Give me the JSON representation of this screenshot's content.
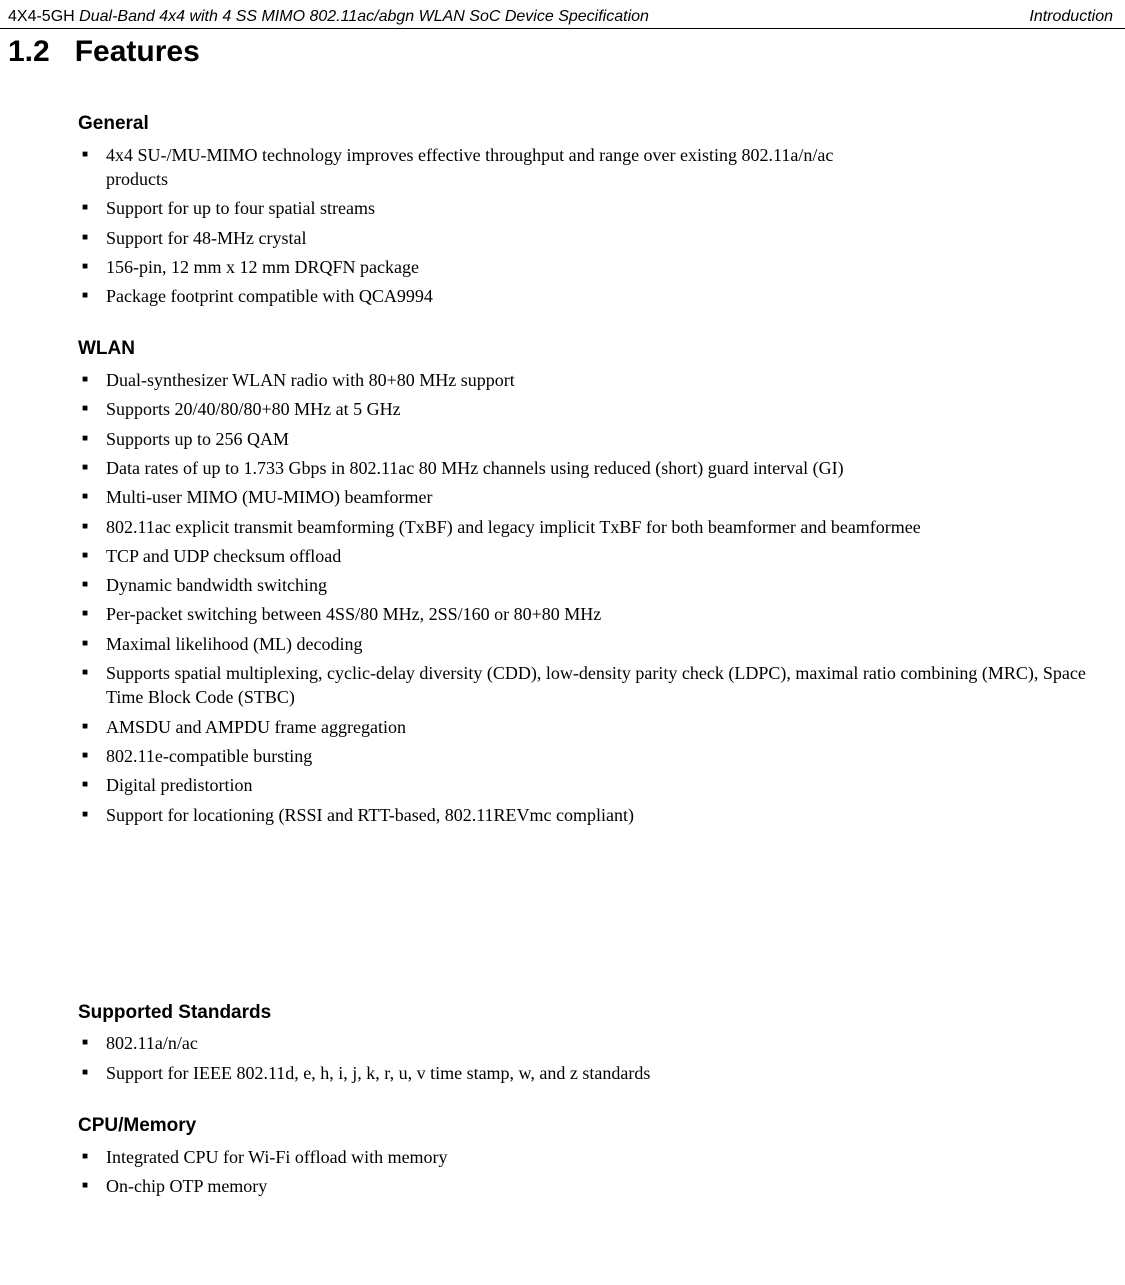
{
  "header": {
    "productCode": "4X4-5GH",
    "leftItalic": "Dual-Band 4x4 with 4 SS MIMO 802.11ac/abgn WLAN SoC Device Specification",
    "right": "Introduction"
  },
  "sectionNumber": "1.2",
  "sectionTitle": "Features",
  "groups": [
    {
      "heading": "General",
      "items": [
        {
          "text": "4x4 SU-/MU-MIMO technology improves effective throughput and range over existing 802.11a/n/ac",
          "cont": "products"
        },
        {
          "text": "Support for up to four spatial streams"
        },
        {
          "text": "Support for 48-MHz crystal"
        },
        {
          "text": "156-pin, 12 mm x 12 mm DRQFN package"
        },
        {
          "text": "Package footprint compatible with QCA9994"
        }
      ]
    },
    {
      "heading": "WLAN",
      "items": [
        {
          "text": "Dual-synthesizer WLAN radio with  80+80 MHz support"
        },
        {
          "text": "Supports 20/40/80/80+80 MHz at 5 GHz"
        },
        {
          "text": "Supports up to 256 QAM"
        },
        {
          "text": "Data rates of up to 1.733 Gbps in 802.11ac 80 MHz channels using reduced (short) guard interval (GI)"
        },
        {
          "text": "Multi-user MIMO (MU-MIMO) beamformer"
        },
        {
          "text": "802.11ac explicit transmit beamforming (TxBF) and legacy implicit TxBF for both beamformer and beamformee"
        },
        {
          "text": "TCP and UDP checksum offload"
        },
        {
          "text": "Dynamic bandwidth switching"
        },
        {
          "text": "Per-packet switching between 4SS/80 MHz, 2SS/160 or 80+80 MHz"
        },
        {
          "text": "Maximal likelihood (ML) decoding"
        },
        {
          "text": "Supports spatial multiplexing, cyclic-delay diversity (CDD), low-density parity check (LDPC), maximal ratio combining (MRC), Space Time Block Code (STBC)"
        },
        {
          "text": "AMSDU and AMPDU frame aggregation"
        },
        {
          "text": "802.11e-compatible bursting"
        },
        {
          "text": "Digital predistortion"
        },
        {
          "text": "Support for locationing (RSSI and RTT-based, 802.11REVmc compliant)"
        }
      ],
      "gapAfter": true
    },
    {
      "heading": "Supported Standards",
      "items": [
        {
          "text": "802.11a/n/ac"
        },
        {
          "text": "Support for IEEE 802.11d, e, h, i, j, k, r, u, v time stamp, w, and z standards"
        }
      ]
    },
    {
      "heading": "CPU/Memory",
      "items": [
        {
          "text": "Integrated CPU for Wi-Fi offload with memory"
        },
        {
          "text": "On-chip OTP memory"
        }
      ]
    }
  ]
}
